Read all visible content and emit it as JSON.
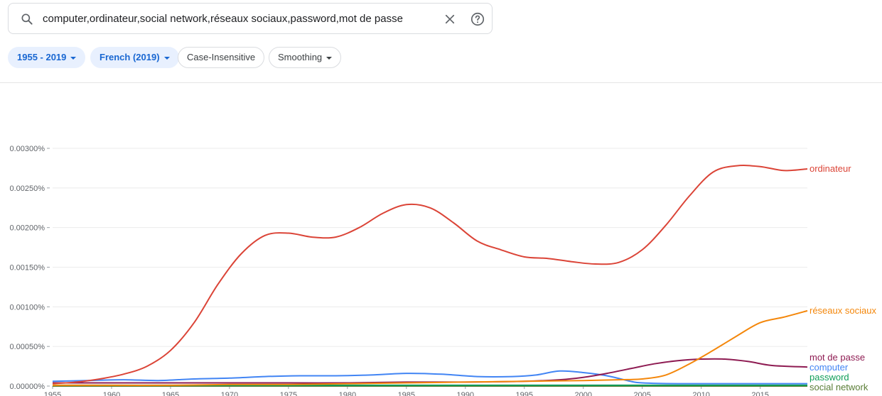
{
  "search": {
    "query": "computer,ordinateur,social network,réseaux sociaux,password,mot de passe"
  },
  "filters": {
    "year_range": "1955 - 2019",
    "corpus": "French (2019)",
    "case": "Case-Insensitive",
    "smoothing": "Smoothing"
  },
  "colors": {
    "chip_active_bg": "#e8f0fe",
    "chip_active_text": "#1967d2"
  },
  "chart_data": {
    "type": "line",
    "xlim": [
      1955,
      2019
    ],
    "ylim": [
      0,
      0.003
    ],
    "x_ticks": [
      1955,
      1960,
      1965,
      1970,
      1975,
      1980,
      1985,
      1990,
      1995,
      2000,
      2005,
      2010,
      2015
    ],
    "y_ticks": [
      {
        "value": 0,
        "label": "0.00000%"
      },
      {
        "value": 0.0005,
        "label": "0.00050%"
      },
      {
        "value": 0.001,
        "label": "0.00100%"
      },
      {
        "value": 0.0015,
        "label": "0.00150%"
      },
      {
        "value": 0.002,
        "label": "0.00200%"
      },
      {
        "value": 0.0025,
        "label": "0.00250%"
      },
      {
        "value": 0.003,
        "label": "0.00300%"
      }
    ],
    "series": [
      {
        "name": "ordinateur",
        "color": "#db4437",
        "x": [
          1955,
          1957,
          1959,
          1961,
          1963,
          1965,
          1967,
          1969,
          1971,
          1973,
          1975,
          1977,
          1979,
          1981,
          1983,
          1985,
          1987,
          1989,
          1991,
          1993,
          1995,
          1997,
          1999,
          2001,
          2003,
          2005,
          2007,
          2009,
          2011,
          2013,
          2015,
          2017,
          2019
        ],
        "y": [
          3e-05,
          5e-05,
          9e-05,
          0.00015,
          0.00025,
          0.00045,
          0.0008,
          0.00128,
          0.00167,
          0.0019,
          0.00193,
          0.00188,
          0.00188,
          0.002,
          0.00218,
          0.00229,
          0.00225,
          0.00206,
          0.00183,
          0.00172,
          0.00163,
          0.00161,
          0.00157,
          0.00154,
          0.00156,
          0.00172,
          0.00203,
          0.0024,
          0.0027,
          0.00278,
          0.00277,
          0.00272,
          0.00274
        ]
      },
      {
        "name": "réseaux sociaux",
        "color": "#f4870b",
        "x": [
          1955,
          1960,
          1965,
          1970,
          1975,
          1980,
          1985,
          1990,
          1995,
          2000,
          2003,
          2005,
          2007,
          2009,
          2011,
          2013,
          2015,
          2017,
          2019
        ],
        "y": [
          1e-05,
          1e-05,
          1e-05,
          2e-05,
          2e-05,
          3e-05,
          4e-05,
          5e-05,
          6e-05,
          7e-05,
          8e-05,
          9e-05,
          0.00014,
          0.00028,
          0.00045,
          0.00063,
          0.0008,
          0.00087,
          0.00095
        ]
      },
      {
        "name": "mot de passe",
        "color": "#8e1b52",
        "x": [
          1955,
          1960,
          1965,
          1970,
          1975,
          1980,
          1985,
          1990,
          1995,
          1998,
          2000,
          2002,
          2004,
          2006,
          2008,
          2010,
          2012,
          2014,
          2016,
          2019
        ],
        "y": [
          4e-05,
          4e-05,
          4e-05,
          4e-05,
          4e-05,
          4e-05,
          5e-05,
          5e-05,
          6e-05,
          8e-05,
          0.00011,
          0.00016,
          0.00022,
          0.00028,
          0.00032,
          0.00034,
          0.00034,
          0.00031,
          0.00026,
          0.00024
        ]
      },
      {
        "name": "computer",
        "color": "#4285f4",
        "x": [
          1955,
          1958,
          1961,
          1964,
          1967,
          1970,
          1973,
          1976,
          1979,
          1982,
          1985,
          1988,
          1991,
          1994,
          1996,
          1998,
          2000,
          2002,
          2004,
          2005,
          2008,
          2012,
          2016,
          2019
        ],
        "y": [
          6e-05,
          7e-05,
          8e-05,
          7e-05,
          9e-05,
          0.0001,
          0.00012,
          0.00013,
          0.00013,
          0.00014,
          0.00016,
          0.00015,
          0.00012,
          0.00012,
          0.00014,
          0.00019,
          0.00017,
          0.00013,
          6e-05,
          4e-05,
          3e-05,
          3e-05,
          3e-05,
          3e-05
        ]
      },
      {
        "name": "password",
        "color": "#0f9d58",
        "x": [
          1955,
          1970,
          1985,
          1995,
          2000,
          2005,
          2010,
          2015,
          2019
        ],
        "y": [
          1e-05,
          1e-05,
          1e-05,
          1e-05,
          1e-05,
          1e-05,
          1e-05,
          1e-05,
          1e-05
        ]
      },
      {
        "name": "social network",
        "color": "#5a7d36",
        "x": [
          1955,
          1970,
          1985,
          1995,
          2000,
          2005,
          2010,
          2015,
          2019
        ],
        "y": [
          0.0,
          0.0,
          0.0,
          0.0,
          0.0,
          0.0,
          0.0,
          0.0,
          0.0
        ]
      }
    ]
  }
}
